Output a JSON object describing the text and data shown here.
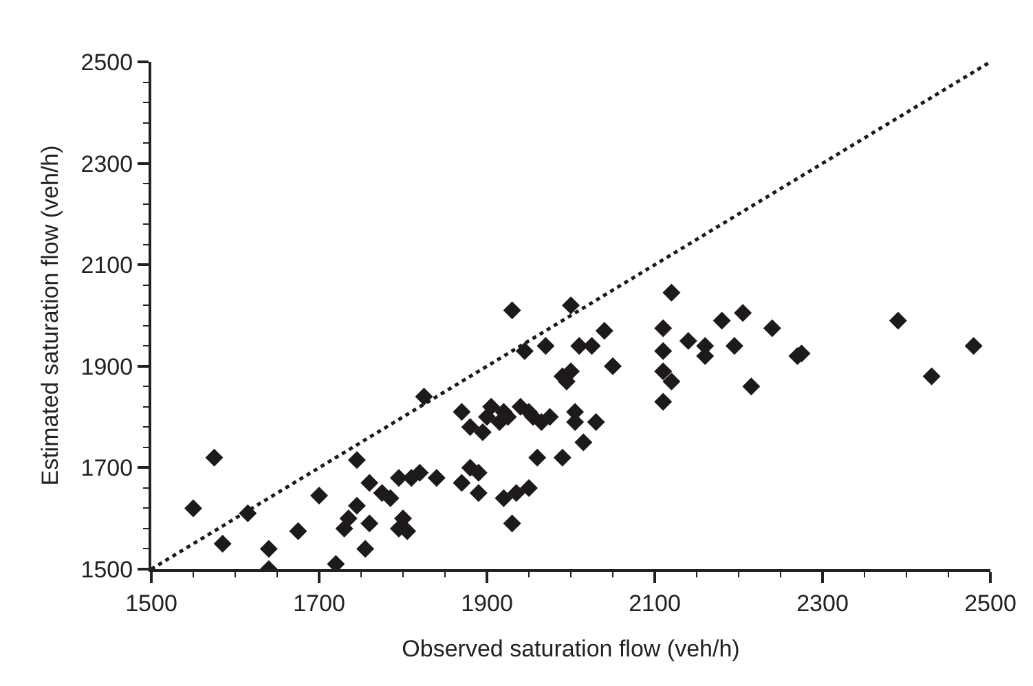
{
  "chart_data": {
    "type": "scatter",
    "xlabel": "Observed saturation flow (veh/h)",
    "ylabel": "Estimated saturation flow (veh/h)",
    "xlim": [
      1500,
      2500
    ],
    "ylim": [
      1500,
      2500
    ],
    "xticks": [
      1500,
      {
        "value": 1550,
        "label": null
      },
      {
        "value": 1600,
        "label": null
      },
      {
        "value": 1650,
        "label": null
      },
      1700,
      {
        "value": 1750,
        "label": null
      },
      {
        "value": 1800,
        "label": null
      },
      {
        "value": 1850,
        "label": null
      },
      1900,
      {
        "value": 1950,
        "label": null
      },
      {
        "value": 2000,
        "label": null
      },
      {
        "value": 2050,
        "label": null
      },
      2100,
      {
        "value": 2150,
        "label": null
      },
      {
        "value": 2200,
        "label": null
      },
      {
        "value": 2250,
        "label": null
      },
      2300,
      {
        "value": 2350,
        "label": null
      },
      {
        "value": 2400,
        "label": null
      },
      {
        "value": 2450,
        "label": null
      },
      2500
    ],
    "yticks": [
      1500,
      {
        "value": 1540,
        "label": null
      },
      {
        "value": 1580,
        "label": null
      },
      {
        "value": 1620,
        "label": null
      },
      {
        "value": 1660,
        "label": null
      },
      1700,
      {
        "value": 1740,
        "label": null
      },
      {
        "value": 1780,
        "label": null
      },
      {
        "value": 1820,
        "label": null
      },
      {
        "value": 1860,
        "label": null
      },
      1900,
      {
        "value": 1940,
        "label": null
      },
      {
        "value": 1980,
        "label": null
      },
      {
        "value": 2020,
        "label": null
      },
      {
        "value": 2060,
        "label": null
      },
      2100,
      {
        "value": 2140,
        "label": null
      },
      {
        "value": 2180,
        "label": null
      },
      {
        "value": 2220,
        "label": null
      },
      {
        "value": 2260,
        "label": null
      },
      2300,
      {
        "value": 2340,
        "label": null
      },
      {
        "value": 2380,
        "label": null
      },
      {
        "value": 2420,
        "label": null
      },
      {
        "value": 2460,
        "label": null
      },
      2500
    ],
    "series": [
      {
        "color": "#1e1a1a",
        "marker": "diamond",
        "x": [
          1550,
          1575,
          1585,
          1615,
          1640,
          1640,
          1675,
          1700,
          1720,
          1730,
          1735,
          1745,
          1745,
          1755,
          1760,
          1760,
          1775,
          1785,
          1795,
          1795,
          1800,
          1805,
          1810,
          1820,
          1825,
          1840,
          1870,
          1870,
          1880,
          1880,
          1890,
          1890,
          1895,
          1900,
          1905,
          1915,
          1920,
          1920,
          1925,
          1930,
          1930,
          1935,
          1940,
          1945,
          1950,
          1950,
          1955,
          1960,
          1965,
          1970,
          1975,
          1990,
          1990,
          1995,
          2000,
          2000,
          2005,
          2005,
          2010,
          2015,
          2025,
          2030,
          2040,
          2050,
          2110,
          2110,
          2110,
          2110,
          2120,
          2120,
          2140,
          2160,
          2160,
          2180,
          2195,
          2205,
          2215,
          2240,
          2270,
          2275,
          2390,
          2430,
          2480
        ],
        "values": [
          1620,
          1720,
          1550,
          1610,
          1540,
          1500,
          1575,
          1645,
          1510,
          1580,
          1600,
          1715,
          1625,
          1540,
          1670,
          1590,
          1650,
          1640,
          1580,
          1680,
          1600,
          1575,
          1680,
          1690,
          1840,
          1680,
          1810,
          1670,
          1700,
          1780,
          1650,
          1690,
          1770,
          1800,
          1820,
          1790,
          1640,
          1810,
          1800,
          1590,
          2010,
          1650,
          1820,
          1930,
          1660,
          1810,
          1800,
          1720,
          1790,
          1940,
          1800,
          1720,
          1880,
          1870,
          1890,
          2020,
          1810,
          1790,
          1940,
          1750,
          1940,
          1790,
          1970,
          1900,
          1975,
          1930,
          1890,
          1830,
          1870,
          2045,
          1950,
          1940,
          1920,
          1990,
          1940,
          2005,
          1860,
          1975,
          1920,
          1925,
          1990,
          1880,
          1940
        ]
      },
      {
        "type": "line",
        "color": "#1e1a1a",
        "line_style": "dotted",
        "x": [
          1500,
          2500
        ],
        "values": [
          1500,
          2500
        ]
      }
    ]
  }
}
